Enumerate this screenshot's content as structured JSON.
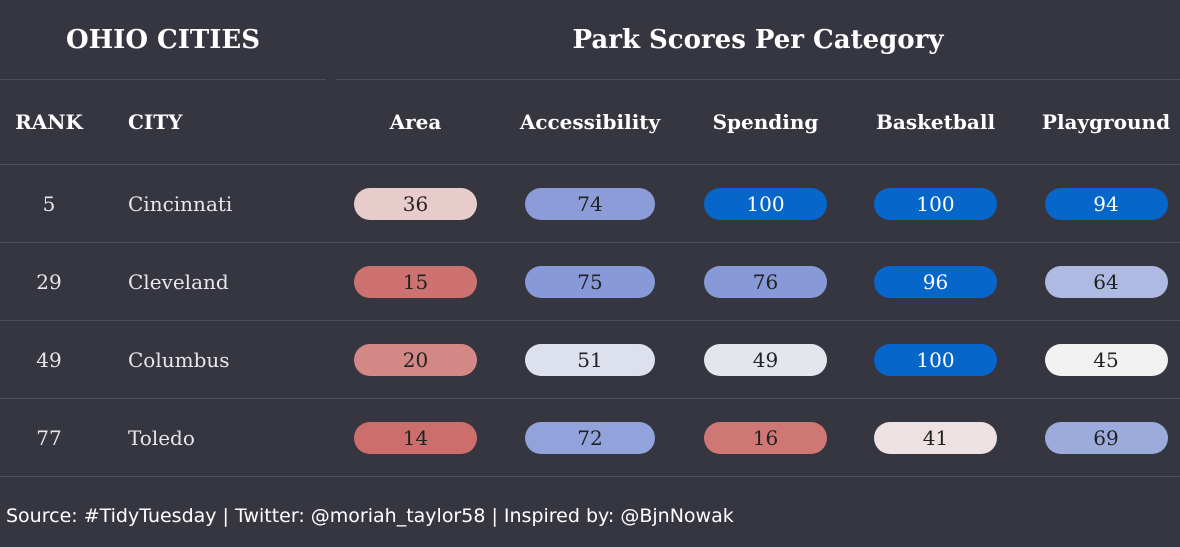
{
  "titles": {
    "left": "OHIO CITIES",
    "right": "Park Scores Per Category"
  },
  "columns": {
    "rank": "RANK",
    "city": "CITY",
    "categories": [
      "Area",
      "Accessibility",
      "Spending",
      "Basketball",
      "Playground"
    ]
  },
  "chart_data": {
    "type": "table",
    "title": "Park Scores Per Category",
    "categories": [
      "Area",
      "Accessibility",
      "Spending",
      "Basketball",
      "Playground"
    ],
    "rows": [
      {
        "rank": "5",
        "city": "Cincinnati",
        "values": [
          36,
          74,
          100,
          100,
          94
        ]
      },
      {
        "rank": "29",
        "city": "Cleveland",
        "values": [
          15,
          75,
          76,
          96,
          64
        ]
      },
      {
        "rank": "49",
        "city": "Columbus",
        "values": [
          20,
          51,
          49,
          100,
          45
        ]
      },
      {
        "rank": "77",
        "city": "Toledo",
        "values": [
          14,
          72,
          16,
          41,
          69
        ]
      }
    ],
    "color_scale": {
      "low": "#cc6e6c",
      "mid": "#f2f2f2",
      "mid_high": "#8799d7",
      "high": "#0766c9"
    }
  },
  "source": "Source: #TidyTuesday | Twitter: @moriah_taylor58 | Inspired by: @BjnNowak"
}
